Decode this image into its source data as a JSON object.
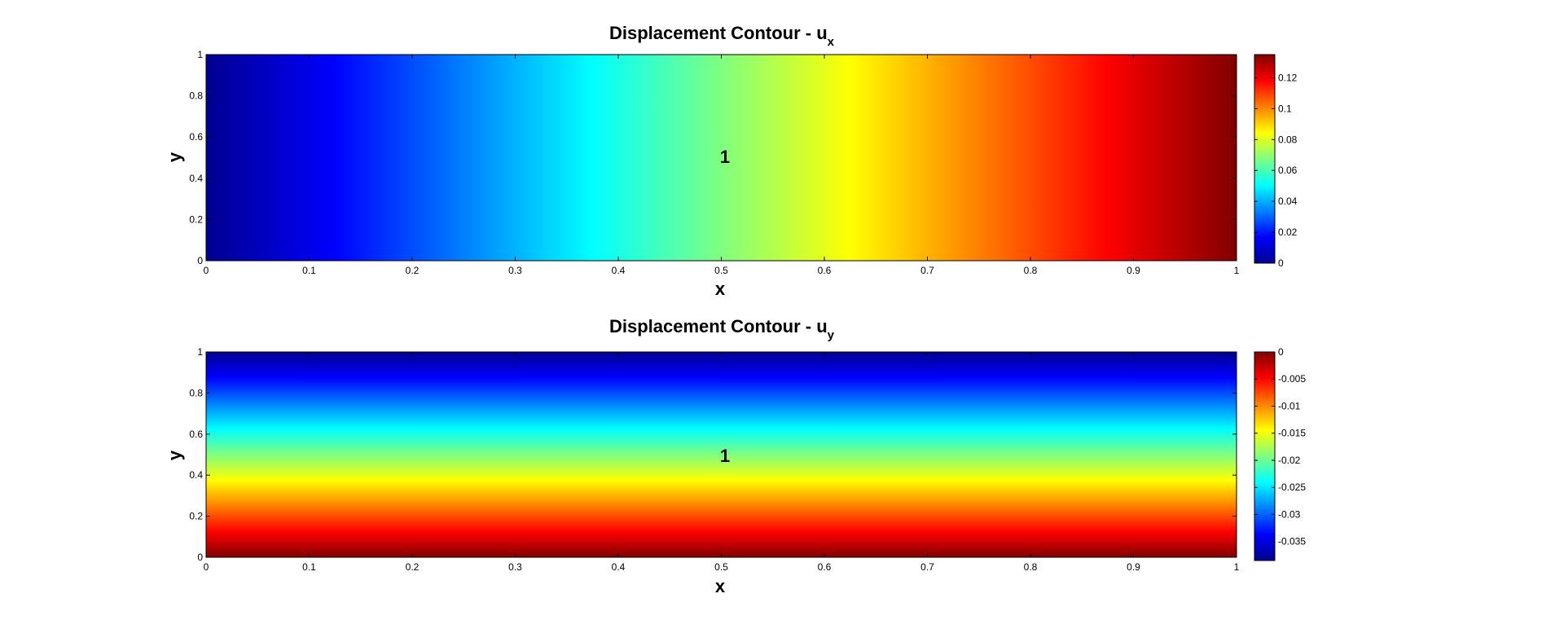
{
  "chart_data": [
    {
      "type": "heatmap",
      "title_text": "Displacement Contour - u",
      "title_sub": "x",
      "xlabel": "x",
      "ylabel": "y",
      "xlim": [
        0,
        1
      ],
      "ylim": [
        0,
        1
      ],
      "xticks": [
        "0",
        "0.1",
        "0.2",
        "0.3",
        "0.4",
        "0.5",
        "0.6",
        "0.7",
        "0.8",
        "0.9",
        "1"
      ],
      "yticks": [
        "0",
        "0.2",
        "0.4",
        "0.6",
        "0.8",
        "1"
      ],
      "region_label": "1",
      "gradient_direction": "x",
      "field_range": [
        0,
        0.135
      ],
      "colormap": "jet",
      "colorbar": {
        "lim": [
          0,
          0.135
        ],
        "ticks": [
          0,
          0.02,
          0.04,
          0.06,
          0.08,
          0.1,
          0.12
        ],
        "tick_labels": [
          "0",
          "0.02",
          "0.04",
          "0.06",
          "0.08",
          "0.1",
          "0.12"
        ]
      },
      "grid": false
    },
    {
      "type": "heatmap",
      "title_text": "Displacement Contour - u",
      "title_sub": "y",
      "xlabel": "x",
      "ylabel": "y",
      "xlim": [
        0,
        1
      ],
      "ylim": [
        0,
        1
      ],
      "xticks": [
        "0",
        "0.1",
        "0.2",
        "0.3",
        "0.4",
        "0.5",
        "0.6",
        "0.7",
        "0.8",
        "0.9",
        "1"
      ],
      "yticks": [
        "0",
        "0.2",
        "0.4",
        "0.6",
        "0.8",
        "1"
      ],
      "region_label": "1",
      "gradient_direction": "y",
      "field_range": [
        -0.0385,
        0
      ],
      "colormap": "jet",
      "colorbar": {
        "lim": [
          -0.0385,
          0
        ],
        "ticks": [
          -0.035,
          -0.03,
          -0.025,
          -0.02,
          -0.015,
          -0.01,
          -0.005,
          0
        ],
        "tick_labels": [
          "-0.035",
          "-0.03",
          "-0.025",
          "-0.02",
          "-0.015",
          "-0.01",
          "-0.005",
          "0"
        ]
      },
      "grid": false
    }
  ]
}
